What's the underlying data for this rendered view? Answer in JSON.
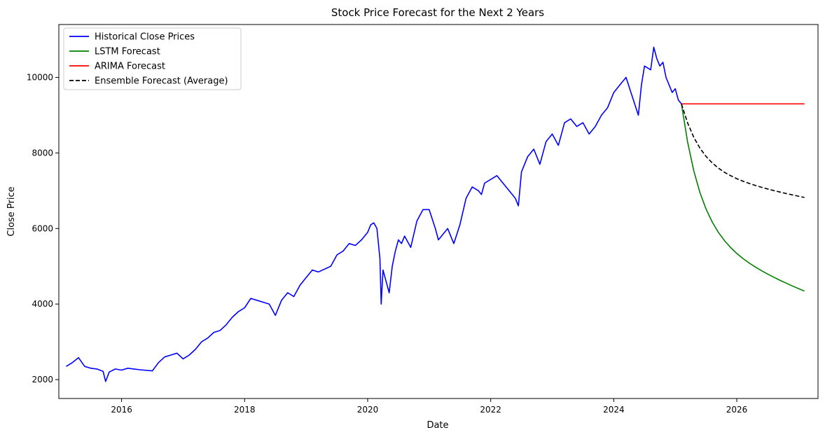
{
  "chart_data": {
    "type": "line",
    "title": "Stock Price Forecast for the Next 2 Years",
    "xlabel": "Date",
    "ylabel": "Close Price",
    "xlim": [
      2014.98,
      2027.32
    ],
    "ylim": [
      1500,
      11400
    ],
    "xticks": [
      2016,
      2018,
      2020,
      2022,
      2024,
      2026
    ],
    "yticks": [
      2000,
      4000,
      6000,
      8000,
      10000
    ],
    "grid": false,
    "legend_position": "top-left",
    "series": [
      {
        "name": "Historical Close Prices",
        "color": "#0000ff",
        "style": "solid",
        "x": [
          2015.1,
          2015.2,
          2015.3,
          2015.4,
          2015.5,
          2015.6,
          2015.7,
          2015.74,
          2015.8,
          2015.9,
          2016.0,
          2016.1,
          2016.2,
          2016.3,
          2016.5,
          2016.6,
          2016.7,
          2016.8,
          2016.9,
          2017.0,
          2017.1,
          2017.2,
          2017.3,
          2017.4,
          2017.5,
          2017.6,
          2017.7,
          2017.8,
          2017.9,
          2018.0,
          2018.1,
          2018.2,
          2018.4,
          2018.5,
          2018.6,
          2018.7,
          2018.8,
          2018.9,
          2019.0,
          2019.1,
          2019.2,
          2019.4,
          2019.5,
          2019.6,
          2019.7,
          2019.8,
          2019.9,
          2020.0,
          2020.05,
          2020.1,
          2020.15,
          2020.2,
          2020.22,
          2020.25,
          2020.3,
          2020.35,
          2020.4,
          2020.45,
          2020.5,
          2020.55,
          2020.6,
          2020.7,
          2020.8,
          2020.9,
          2021.0,
          2021.1,
          2021.15,
          2021.2,
          2021.3,
          2021.4,
          2021.5,
          2021.6,
          2021.7,
          2021.8,
          2021.85,
          2021.9,
          2022.0,
          2022.1,
          2022.2,
          2022.3,
          2022.4,
          2022.45,
          2022.5,
          2022.6,
          2022.7,
          2022.8,
          2022.9,
          2023.0,
          2023.1,
          2023.2,
          2023.3,
          2023.4,
          2023.5,
          2023.6,
          2023.7,
          2023.8,
          2023.9,
          2024.0,
          2024.1,
          2024.2,
          2024.3,
          2024.4,
          2024.45,
          2024.5,
          2024.6,
          2024.65,
          2024.7,
          2024.75,
          2024.8,
          2024.85,
          2024.9,
          2024.95,
          2025.0,
          2025.05,
          2025.1
        ],
        "values": [
          2350,
          2450,
          2580,
          2350,
          2300,
          2280,
          2220,
          1950,
          2200,
          2280,
          2250,
          2300,
          2280,
          2260,
          2230,
          2450,
          2600,
          2650,
          2700,
          2550,
          2650,
          2800,
          3000,
          3100,
          3250,
          3300,
          3450,
          3650,
          3800,
          3900,
          4150,
          4100,
          4000,
          3700,
          4100,
          4300,
          4200,
          4500,
          4700,
          4900,
          4850,
          5000,
          5300,
          5400,
          5600,
          5550,
          5700,
          5900,
          6100,
          6150,
          6000,
          5200,
          4000,
          4900,
          4600,
          4300,
          5000,
          5400,
          5700,
          5600,
          5800,
          5500,
          6200,
          6500,
          6500,
          6000,
          5700,
          5800,
          6000,
          5600,
          6100,
          6800,
          7100,
          7000,
          6900,
          7200,
          7300,
          7400,
          7200,
          7000,
          6800,
          6600,
          7500,
          7900,
          8100,
          7700,
          8300,
          8500,
          8200,
          8800,
          8900,
          8700,
          8800,
          8500,
          8700,
          9000,
          9200,
          9600,
          9800,
          10000,
          9500,
          9000,
          9800,
          10300,
          10200,
          10800,
          10500,
          10300,
          10400,
          10000,
          9800,
          9600,
          9700,
          9400,
          9300
        ]
      },
      {
        "name": "LSTM Forecast",
        "color": "#008000",
        "style": "solid",
        "x": [
          2025.1,
          2025.2,
          2025.3,
          2025.4,
          2025.5,
          2025.6,
          2025.7,
          2025.8,
          2025.9,
          2026.0,
          2026.1,
          2026.2,
          2026.3,
          2026.4,
          2026.5,
          2026.6,
          2026.7,
          2026.8,
          2026.9,
          2027.0,
          2027.1
        ],
        "values": [
          9300,
          8290,
          7531,
          6958,
          6518,
          6174,
          5900,
          5678,
          5495,
          5340,
          5206,
          5088,
          4982,
          4885,
          4795,
          4711,
          4631,
          4555,
          4482,
          4411,
          4343
        ]
      },
      {
        "name": "ARIMA Forecast",
        "color": "#ff0000",
        "style": "solid",
        "x": [
          2025.1,
          2027.1
        ],
        "values": [
          9300,
          9300
        ]
      },
      {
        "name": "Ensemble Forecast (Average)",
        "color": "#000000",
        "style": "dashed",
        "x": [
          2025.1,
          2025.2,
          2025.3,
          2025.4,
          2025.5,
          2025.6,
          2025.7,
          2025.8,
          2025.9,
          2026.0,
          2026.1,
          2026.2,
          2026.3,
          2026.4,
          2026.5,
          2026.6,
          2026.7,
          2026.8,
          2026.9,
          2027.0,
          2027.1
        ],
        "values": [
          9300,
          8795,
          8416,
          8129,
          7909,
          7737,
          7600,
          7489,
          7397,
          7320,
          7253,
          7194,
          7141,
          7092,
          7047,
          7005,
          6966,
          6927,
          6891,
          6856,
          6821
        ]
      }
    ]
  }
}
